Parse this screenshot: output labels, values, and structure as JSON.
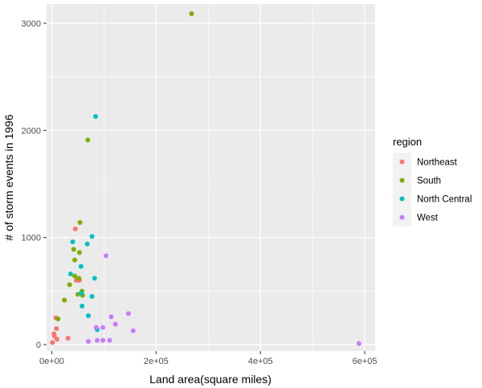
{
  "chart_data": {
    "type": "scatter",
    "title": "",
    "xlabel": "Land area(square miles)",
    "ylabel": "# of storm events in 1996",
    "xlim": [
      -10000,
      620000
    ],
    "ylim": [
      -60,
      3180
    ],
    "x_ticks": [
      0,
      200000,
      400000,
      600000
    ],
    "x_tick_labels": [
      "0e+00",
      "2e+05",
      "4e+05",
      "6e+05"
    ],
    "y_ticks": [
      0,
      1000,
      2000,
      3000
    ],
    "y_tick_labels": [
      "0",
      "1000",
      "2000",
      "3000"
    ],
    "grid": true,
    "legend": {
      "title": "region",
      "position": "right",
      "entries": [
        "Northeast",
        "South",
        "North Central",
        "West"
      ]
    },
    "colors": {
      "Northeast": "#F8766D",
      "South": "#7CAE00",
      "North Central": "#00BFC4",
      "West": "#C77CFF",
      "panel": "#EBEBEB",
      "grid": "#FFFFFF"
    },
    "series": [
      {
        "name": "Northeast",
        "points": [
          [
            1200,
            20
          ],
          [
            4000,
            100
          ],
          [
            5000,
            80
          ],
          [
            8000,
            250
          ],
          [
            9000,
            150
          ],
          [
            10000,
            50
          ],
          [
            31000,
            60
          ],
          [
            45000,
            1080
          ],
          [
            47000,
            600
          ],
          [
            53000,
            600
          ]
        ]
      },
      {
        "name": "South",
        "points": [
          [
            12000,
            240
          ],
          [
            24000,
            415
          ],
          [
            34000,
            560
          ],
          [
            42000,
            890
          ],
          [
            44000,
            790
          ],
          [
            44000,
            640
          ],
          [
            50000,
            470
          ],
          [
            52000,
            620
          ],
          [
            53000,
            860
          ],
          [
            54000,
            1140
          ],
          [
            58000,
            500
          ],
          [
            59000,
            460
          ],
          [
            69000,
            1910
          ],
          [
            268000,
            3090
          ]
        ]
      },
      {
        "name": "North Central",
        "points": [
          [
            36000,
            660
          ],
          [
            40000,
            960
          ],
          [
            56000,
            480
          ],
          [
            56000,
            730
          ],
          [
            58000,
            360
          ],
          [
            68000,
            940
          ],
          [
            70000,
            270
          ],
          [
            77000,
            450
          ],
          [
            77000,
            1010
          ],
          [
            82000,
            620
          ],
          [
            84000,
            2130
          ],
          [
            87000,
            140
          ]
        ]
      },
      {
        "name": "West",
        "points": [
          [
            70000,
            30
          ],
          [
            85000,
            160
          ],
          [
            87000,
            40
          ],
          [
            98000,
            40
          ],
          [
            98000,
            160
          ],
          [
            104000,
            830
          ],
          [
            111000,
            40
          ],
          [
            114000,
            260
          ],
          [
            122000,
            190
          ],
          [
            147000,
            290
          ],
          [
            156000,
            130
          ],
          [
            589000,
            10
          ]
        ]
      }
    ]
  }
}
